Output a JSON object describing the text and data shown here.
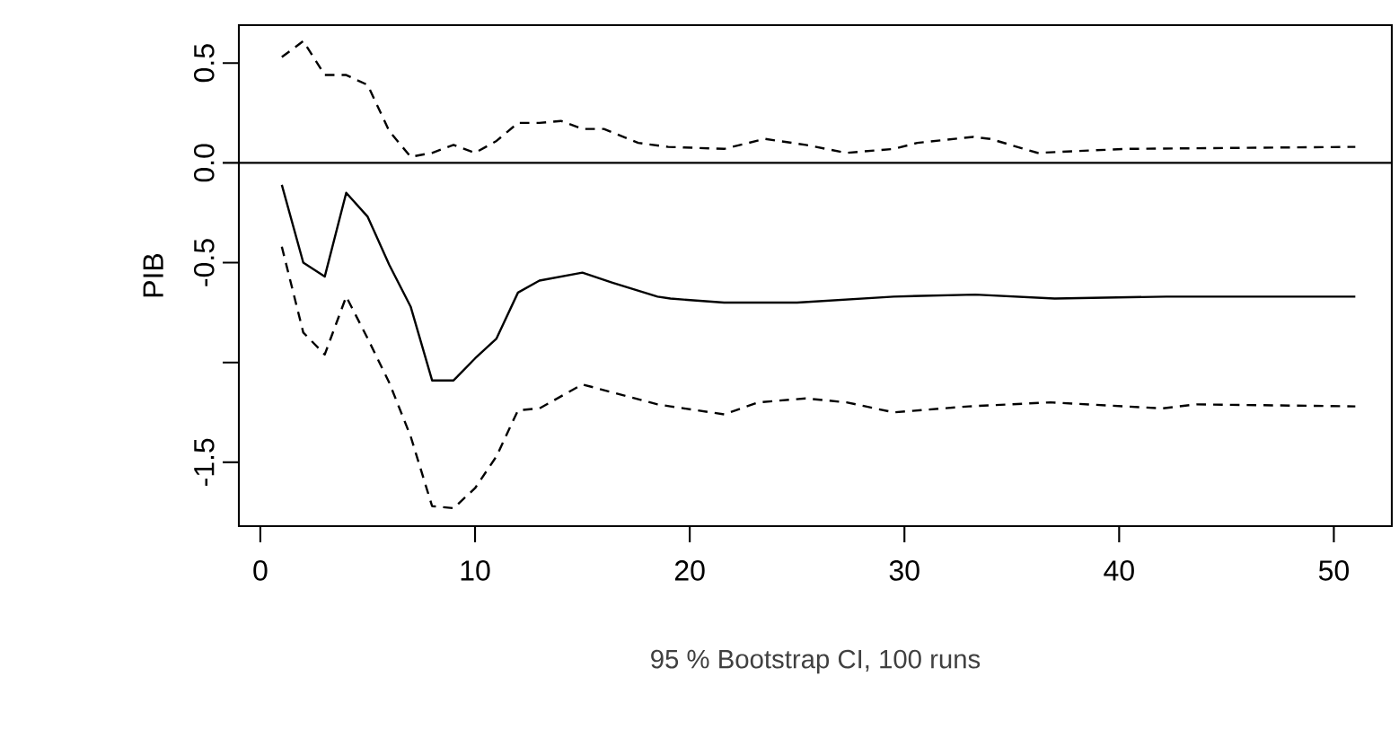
{
  "chart_data": {
    "type": "line",
    "xlabel": "95 % Bootstrap CI, 100 runs",
    "ylabel": "PIB",
    "xlim": [
      -1,
      52.7
    ],
    "ylim": [
      -1.82,
      0.69
    ],
    "xticks": [
      0,
      10,
      20,
      30,
      40,
      50
    ],
    "yticks": [
      {
        "value": -1.5,
        "label": "-1.5"
      },
      {
        "value": -1.0,
        "label": null
      },
      {
        "value": -0.5,
        "label": "-0.5"
      },
      {
        "value": 0,
        "label": "0.0"
      },
      {
        "value": 0.5,
        "label": "0.5"
      }
    ],
    "ref_lines": [
      {
        "axis": "y",
        "value": 0,
        "color": "#000000"
      }
    ],
    "grid": false,
    "marker": "none",
    "series": [
      {
        "color": "#000000",
        "line_style": "dashed",
        "x": [
          1,
          2,
          3,
          4,
          5,
          6,
          7,
          8,
          9,
          10,
          11,
          12,
          13,
          14,
          15,
          16,
          17.6,
          19,
          21.6,
          23.5,
          25.4,
          27.3,
          29.5,
          30.6,
          33.2,
          34,
          36.2,
          40.3,
          51
        ],
        "values": [
          0.53,
          0.61,
          0.44,
          0.44,
          0.39,
          0.16,
          0.03,
          0.05,
          0.09,
          0.05,
          0.11,
          0.2,
          0.2,
          0.21,
          0.17,
          0.17,
          0.1,
          0.08,
          0.07,
          0.12,
          0.09,
          0.05,
          0.07,
          0.1,
          0.13,
          0.12,
          0.05,
          0.07,
          0.08
        ]
      },
      {
        "color": "#000000",
        "line_style": "solid",
        "x": [
          1,
          2,
          3,
          4,
          5,
          6,
          7,
          8,
          9,
          10,
          11,
          12,
          13,
          15,
          16.4,
          18.5,
          19.1,
          21.6,
          25,
          29.5,
          33.3,
          37,
          42.2,
          51
        ],
        "values": [
          -0.11,
          -0.5,
          -0.57,
          -0.15,
          -0.27,
          -0.51,
          -0.72,
          -1.09,
          -1.09,
          -0.98,
          -0.88,
          -0.65,
          -0.59,
          -0.55,
          -0.6,
          -0.67,
          -0.68,
          -0.7,
          -0.7,
          -0.67,
          -0.66,
          -0.68,
          -0.67,
          -0.67
        ]
      },
      {
        "color": "#000000",
        "line_style": "dashed",
        "x": [
          1,
          2,
          3,
          4,
          5,
          6,
          7,
          8,
          9,
          10,
          11,
          12,
          13,
          15,
          16.4,
          18.5,
          19.1,
          21.6,
          23.2,
          25.4,
          27.3,
          29.5,
          33,
          36.8,
          42,
          43.6,
          51
        ],
        "values": [
          -0.42,
          -0.85,
          -0.96,
          -0.67,
          -0.88,
          -1.1,
          -1.37,
          -1.72,
          -1.73,
          -1.63,
          -1.47,
          -1.24,
          -1.23,
          -1.11,
          -1.15,
          -1.21,
          -1.22,
          -1.26,
          -1.2,
          -1.18,
          -1.2,
          -1.25,
          -1.22,
          -1.2,
          -1.23,
          -1.21,
          -1.22
        ]
      }
    ]
  }
}
